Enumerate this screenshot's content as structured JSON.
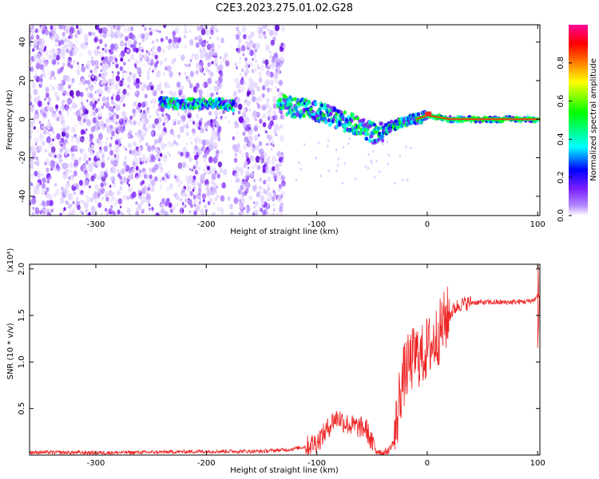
{
  "title": "C2E3.2023.275.01.02.G28",
  "chart_data": [
    {
      "type": "heatmap",
      "title": "",
      "xlabel": "Height of straight line (km)",
      "ylabel": "Frequency (Hz)",
      "xlim": [
        -360,
        102
      ],
      "ylim": [
        -50,
        49
      ],
      "x_ticks": [
        -300,
        -200,
        -100,
        0,
        100
      ],
      "y_ticks": [
        -40,
        -20,
        0,
        20,
        40
      ],
      "x_tick_labels": [
        "-300",
        "-200",
        "-100",
        "0",
        "100"
      ],
      "y_tick_labels": [
        "-40",
        "-20",
        "0",
        "20",
        "40"
      ],
      "colorbar": {
        "label": "Normalized spectral amplitude",
        "range": [
          0,
          1
        ],
        "ticks": [
          "0.0",
          "0.2",
          "0.4",
          "0.6",
          "0.8"
        ],
        "colors": [
          "#ffffff",
          "#7b1fff",
          "#0000ff",
          "#00ffff",
          "#00ff00",
          "#ffff00",
          "#ff8000",
          "#ff0000",
          "#ff0099"
        ]
      },
      "noise_region": [
        -360,
        -130
      ],
      "signal_track": {
        "x": [
          -240,
          -225,
          -200,
          -185,
          -180,
          -130,
          -120,
          -100,
          -80,
          -60,
          -50,
          -45,
          -40,
          -30,
          -20,
          -10,
          0,
          10,
          20,
          50,
          100
        ],
        "y": [
          9,
          8,
          8,
          8,
          7,
          8,
          6,
          4,
          0,
          -4,
          -7,
          -8,
          -6,
          -3,
          -1,
          0,
          2,
          1,
          0,
          0,
          0
        ]
      },
      "grid": false,
      "legend": "none"
    },
    {
      "type": "line",
      "title": "",
      "xlabel": "Height of straight line (km)",
      "ylabel": "SNR (10 * v/v)",
      "y_scale_label": "(x10⁴)",
      "xlim": [
        -360,
        102
      ],
      "ylim": [
        0,
        2.05
      ],
      "x_ticks": [
        -300,
        -200,
        -100,
        0,
        100
      ],
      "y_ticks": [
        0.5,
        1.0,
        1.5,
        2.0
      ],
      "x_tick_labels": [
        "-300",
        "-200",
        "-100",
        "0",
        "100"
      ],
      "y_tick_labels": [
        "0.5",
        "1.0",
        "1.5",
        "2.0"
      ],
      "series": [
        {
          "color": "#ee2222",
          "x": [
            -360,
            -300,
            -250,
            -200,
            -150,
            -125,
            -110,
            -100,
            -92,
            -85,
            -80,
            -75,
            -70,
            -62,
            -55,
            -50,
            -45,
            -40,
            -35,
            -30,
            -27,
            -25,
            -22,
            -20,
            -15,
            -10,
            -5,
            0,
            5,
            10,
            15,
            20,
            25,
            30,
            40,
            50,
            70,
            90,
            95,
            98,
            100,
            102
          ],
          "y": [
            0.03,
            0.025,
            0.03,
            0.04,
            0.04,
            0.06,
            0.09,
            0.14,
            0.25,
            0.38,
            0.4,
            0.35,
            0.32,
            0.3,
            0.28,
            0.12,
            0.05,
            0.02,
            0.05,
            0.15,
            0.4,
            0.65,
            0.8,
            0.9,
            1.0,
            1.08,
            1.05,
            1.15,
            1.2,
            1.3,
            1.42,
            1.5,
            1.58,
            1.62,
            1.64,
            1.64,
            1.64,
            1.65,
            1.66,
            1.68,
            1.72,
            1.7
          ]
        }
      ],
      "grid": false,
      "legend": "none"
    }
  ]
}
